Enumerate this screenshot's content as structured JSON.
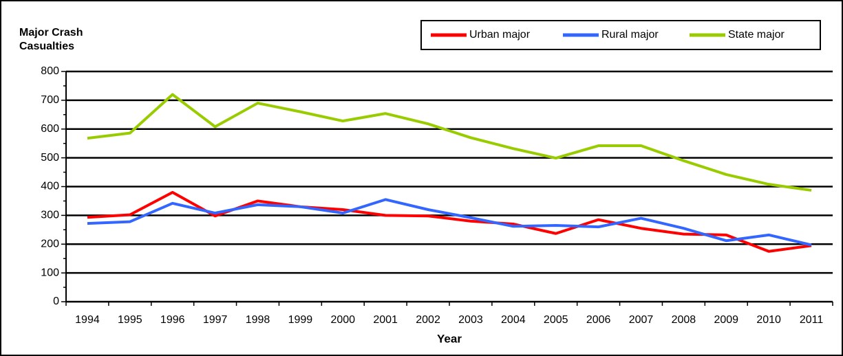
{
  "chart_data": {
    "type": "line",
    "ylabel": "Major Crash Casualties",
    "xlabel": "Year",
    "categories": [
      "1994",
      "1995",
      "1996",
      "1997",
      "1998",
      "1999",
      "2000",
      "2001",
      "2002",
      "2003",
      "2004",
      "2005",
      "2006",
      "2007",
      "2008",
      "2009",
      "2010",
      "2011"
    ],
    "series": [
      {
        "name": "Urban major",
        "color": "#ff0000",
        "values": [
          293,
          302,
          380,
          298,
          350,
          330,
          320,
          300,
          298,
          280,
          270,
          237,
          285,
          255,
          235,
          232,
          175,
          195
        ]
      },
      {
        "name": "Rural major",
        "color": "#3366ff",
        "values": [
          272,
          278,
          342,
          308,
          337,
          330,
          308,
          355,
          320,
          292,
          262,
          265,
          260,
          290,
          255,
          212,
          232,
          197
        ]
      },
      {
        "name": "State major",
        "color": "#99cc00",
        "values": [
          568,
          586,
          720,
          608,
          690,
          660,
          628,
          654,
          618,
          570,
          532,
          499,
          542,
          542,
          490,
          442,
          408,
          387
        ]
      }
    ],
    "ylim": [
      0,
      800
    ],
    "yticks": [
      0,
      100,
      200,
      300,
      400,
      500,
      600,
      700,
      800
    ],
    "grid": true,
    "legend": "top-right"
  }
}
